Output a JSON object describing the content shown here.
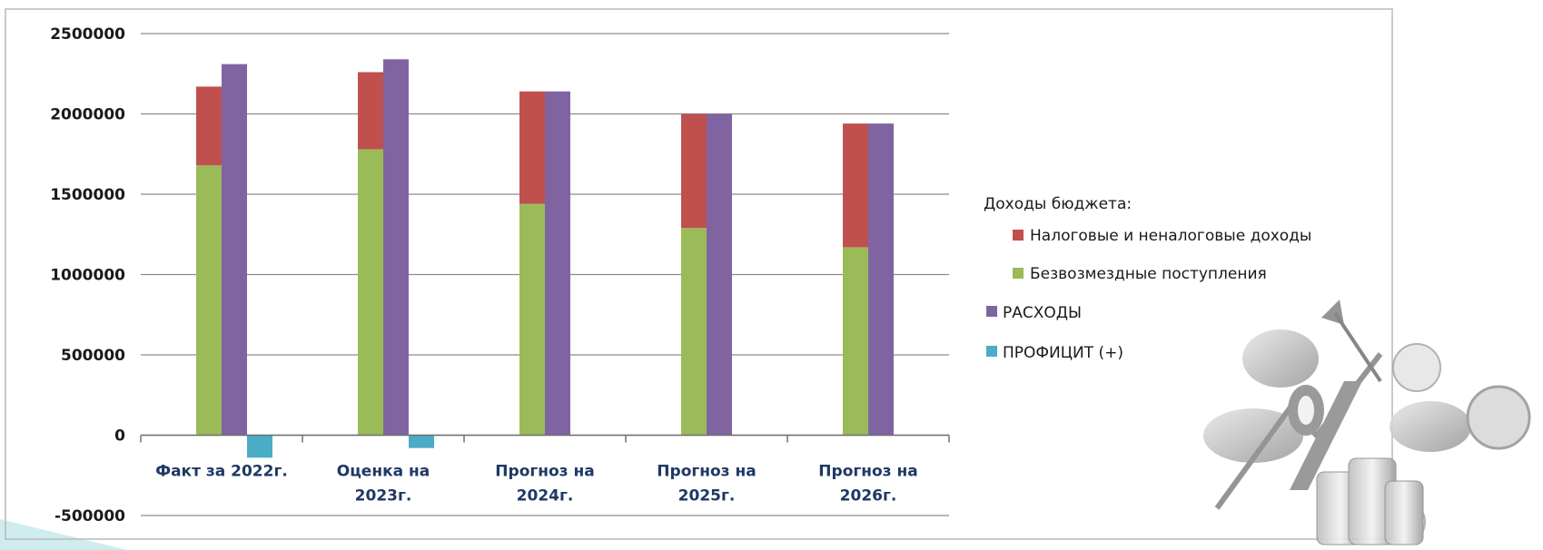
{
  "chart_data": {
    "type": "bar",
    "stacked_groups": true,
    "categories": [
      [
        "Факт за 2022г."
      ],
      [
        "Оценка на",
        "2023г."
      ],
      [
        "Прогноз на",
        "2024г."
      ],
      [
        "Прогноз на",
        "2025г."
      ],
      [
        "Прогноз на",
        "2026г."
      ]
    ],
    "title": "",
    "xlabel": "",
    "ylabel": "",
    "ylim": [
      -500000,
      2500000
    ],
    "yticks": [
      2500000,
      2000000,
      1500000,
      1000000,
      500000,
      0,
      -500000
    ],
    "ytick_labels": [
      "2500000",
      "2000000",
      "1500000",
      "1000000",
      "500000",
      "0",
      "-500000"
    ],
    "grid": true,
    "legend_position": "right",
    "legend_heading": "Доходы бюджета:",
    "series": [
      {
        "name": "Налоговые и неналоговые доходы",
        "stack": "income",
        "color": "#c0504d",
        "values": [
          490000,
          480000,
          700000,
          710000,
          770000
        ]
      },
      {
        "name": "Безвозмездные поступления",
        "stack": "income",
        "color": "#9bbb59",
        "values": [
          1680000,
          1780000,
          1440000,
          1290000,
          1170000
        ]
      },
      {
        "name": "РАСХОДЫ",
        "stack": "expense",
        "color": "#8064a2",
        "values": [
          2310000,
          2340000,
          2140000,
          2000000,
          1940000
        ]
      },
      {
        "name": "ПРОФИЦИТ (+)",
        "stack": "surplus",
        "color": "#4bacc6",
        "values": [
          -140000,
          -80000,
          0,
          0,
          0
        ]
      }
    ],
    "legend_order": [
      "Налоговые и неналоговые доходы",
      "Безвозмездные поступления",
      "РАСХОДЫ",
      "ПРОФИЦИТ (+)"
    ]
  }
}
